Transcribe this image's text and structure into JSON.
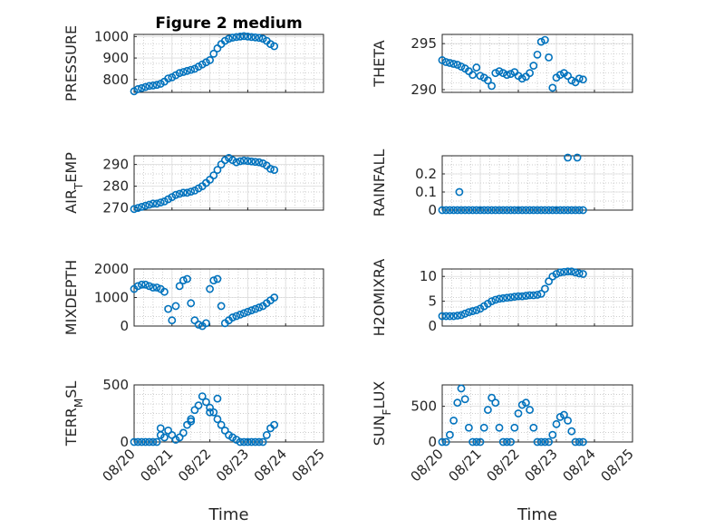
{
  "title": "Figure 2 medium",
  "chart_data": [
    {
      "type": "scatter",
      "title": "Figure 2 medium",
      "ylabel": "PRESSURE",
      "yticks": [
        800,
        900,
        1000
      ],
      "ylim": [
        740,
        1010
      ],
      "xlim": [
        0,
        5
      ],
      "xticks": [
        "08/20",
        "08/21",
        "08/22",
        "08/23",
        "08/24",
        "08/25"
      ],
      "grid": "minor-dotted",
      "x": [
        0.0,
        0.1,
        0.2,
        0.3,
        0.4,
        0.5,
        0.6,
        0.7,
        0.8,
        0.9,
        1.0,
        1.1,
        1.2,
        1.3,
        1.4,
        1.5,
        1.6,
        1.7,
        1.8,
        1.9,
        2.0,
        2.1,
        2.2,
        2.3,
        2.4,
        2.5,
        2.6,
        2.7,
        2.8,
        2.9,
        3.0,
        3.1,
        3.2,
        3.3,
        3.4,
        3.5,
        3.6,
        3.7
      ],
      "y": [
        745,
        755,
        760,
        765,
        770,
        772,
        775,
        780,
        790,
        805,
        810,
        820,
        830,
        835,
        840,
        845,
        850,
        860,
        870,
        880,
        890,
        920,
        945,
        965,
        980,
        990,
        995,
        998,
        1000,
        1002,
        1000,
        998,
        996,
        994,
        990,
        980,
        965,
        955
      ]
    },
    {
      "type": "scatter",
      "ylabel": "THETA",
      "yticks": [
        290,
        295
      ],
      "ylim": [
        289.7,
        296
      ],
      "xlim": [
        0,
        5
      ],
      "xticks": [
        "08/20",
        "08/21",
        "08/22",
        "08/23",
        "08/24",
        "08/25"
      ],
      "grid": "minor-dotted",
      "x": [
        0.0,
        0.1,
        0.2,
        0.3,
        0.4,
        0.5,
        0.6,
        0.7,
        0.8,
        0.9,
        1.0,
        1.1,
        1.2,
        1.3,
        1.4,
        1.5,
        1.6,
        1.7,
        1.8,
        1.9,
        2.0,
        2.1,
        2.2,
        2.3,
        2.4,
        2.5,
        2.6,
        2.7,
        2.8,
        2.9,
        3.0,
        3.1,
        3.2,
        3.3,
        3.4,
        3.5,
        3.6,
        3.7
      ],
      "y": [
        293.2,
        293.0,
        292.9,
        292.8,
        292.7,
        292.5,
        292.3,
        292.0,
        291.6,
        292.4,
        291.5,
        291.3,
        291.0,
        290.4,
        291.8,
        292.0,
        291.8,
        291.6,
        291.7,
        291.9,
        291.5,
        291.2,
        291.4,
        291.8,
        292.6,
        293.8,
        295.2,
        295.4,
        293.5,
        290.2,
        291.3,
        291.6,
        291.8,
        291.5,
        291.0,
        290.8,
        291.2,
        291.1
      ]
    },
    {
      "type": "scatter",
      "ylabel": "AIR",
      "ylabel_sub": "T",
      "ylabel_rest": "EMP",
      "yticks": [
        270,
        280,
        290
      ],
      "ylim": [
        269,
        294
      ],
      "xlim": [
        0,
        5
      ],
      "xticks": [
        "08/20",
        "08/21",
        "08/22",
        "08/23",
        "08/24",
        "08/25"
      ],
      "grid": "minor-dotted",
      "x": [
        0.0,
        0.1,
        0.2,
        0.3,
        0.4,
        0.5,
        0.6,
        0.7,
        0.8,
        0.9,
        1.0,
        1.1,
        1.2,
        1.3,
        1.4,
        1.5,
        1.6,
        1.7,
        1.8,
        1.9,
        2.0,
        2.1,
        2.2,
        2.3,
        2.4,
        2.5,
        2.6,
        2.7,
        2.8,
        2.9,
        3.0,
        3.1,
        3.2,
        3.3,
        3.4,
        3.5,
        3.6,
        3.7
      ],
      "y": [
        269.5,
        270.0,
        270.5,
        271.0,
        271.5,
        272.0,
        272.0,
        272.5,
        273.0,
        274.0,
        275.0,
        276.0,
        276.5,
        277.0,
        277.0,
        277.5,
        278.0,
        279.0,
        280.0,
        281.5,
        283.0,
        285.0,
        287.5,
        290.0,
        292.0,
        293.0,
        292.0,
        291.0,
        291.5,
        291.8,
        291.6,
        291.4,
        291.2,
        291.0,
        290.5,
        289.5,
        288.0,
        287.5
      ]
    },
    {
      "type": "scatter",
      "ylabel": "RAINFALL",
      "yticks": [
        0,
        0.1,
        0.2
      ],
      "ylim": [
        0,
        0.3
      ],
      "xlim": [
        0,
        5
      ],
      "xticks": [
        "08/20",
        "08/21",
        "08/22",
        "08/23",
        "08/24",
        "08/25"
      ],
      "grid": "minor-dotted",
      "x": [
        0.0,
        0.1,
        0.2,
        0.3,
        0.4,
        0.5,
        0.6,
        0.7,
        0.8,
        0.9,
        1.0,
        1.1,
        1.2,
        1.3,
        1.4,
        1.5,
        1.6,
        1.7,
        1.8,
        1.9,
        2.0,
        2.1,
        2.2,
        2.3,
        2.4,
        2.5,
        2.6,
        2.7,
        2.8,
        2.9,
        3.0,
        3.1,
        3.2,
        3.3,
        3.4,
        3.5,
        3.6,
        3.7,
        0.45,
        3.3,
        3.55
      ],
      "y": [
        0,
        0,
        0,
        0,
        0,
        0,
        0,
        0,
        0,
        0,
        0,
        0,
        0,
        0,
        0,
        0,
        0,
        0,
        0,
        0,
        0,
        0,
        0,
        0,
        0,
        0,
        0,
        0,
        0,
        0,
        0,
        0,
        0,
        0,
        0,
        0,
        0,
        0,
        0.1,
        0.29,
        0.29
      ]
    },
    {
      "type": "scatter",
      "ylabel": "MIXDEPTH",
      "yticks": [
        0,
        1000,
        2000
      ],
      "ylim": [
        0,
        2000
      ],
      "xlim": [
        0,
        5
      ],
      "xticks": [
        "08/20",
        "08/21",
        "08/22",
        "08/23",
        "08/24",
        "08/25"
      ],
      "grid": "minor-dotted",
      "x": [
        0.0,
        0.1,
        0.2,
        0.3,
        0.4,
        0.5,
        0.6,
        0.7,
        0.8,
        0.9,
        1.0,
        1.1,
        1.2,
        1.3,
        1.4,
        1.5,
        1.6,
        1.7,
        1.8,
        1.9,
        2.0,
        2.1,
        2.2,
        2.3,
        2.4,
        2.5,
        2.6,
        2.7,
        2.8,
        2.9,
        3.0,
        3.1,
        3.2,
        3.3,
        3.4,
        3.5,
        3.6,
        3.7
      ],
      "y": [
        1300,
        1400,
        1450,
        1450,
        1400,
        1350,
        1350,
        1300,
        1200,
        600,
        200,
        700,
        1400,
        1600,
        1650,
        800,
        200,
        50,
        0,
        100,
        1300,
        1600,
        1650,
        700,
        100,
        200,
        300,
        350,
        400,
        450,
        500,
        550,
        600,
        650,
        700,
        800,
        900,
        1000
      ]
    },
    {
      "type": "scatter",
      "ylabel": "H2OMIXRA",
      "yticks": [
        0,
        5,
        10
      ],
      "ylim": [
        0,
        11.5
      ],
      "xlim": [
        0,
        5
      ],
      "xticks": [
        "08/20",
        "08/21",
        "08/22",
        "08/23",
        "08/24",
        "08/25"
      ],
      "grid": "minor-dotted",
      "x": [
        0.0,
        0.1,
        0.2,
        0.3,
        0.4,
        0.5,
        0.6,
        0.7,
        0.8,
        0.9,
        1.0,
        1.1,
        1.2,
        1.3,
        1.4,
        1.5,
        1.6,
        1.7,
        1.8,
        1.9,
        2.0,
        2.1,
        2.2,
        2.3,
        2.4,
        2.5,
        2.6,
        2.7,
        2.8,
        2.9,
        3.0,
        3.1,
        3.2,
        3.3,
        3.4,
        3.5,
        3.6,
        3.7
      ],
      "y": [
        2.0,
        2.0,
        2.0,
        2.0,
        2.1,
        2.2,
        2.5,
        2.8,
        3.0,
        3.2,
        3.5,
        4.0,
        4.5,
        5.0,
        5.3,
        5.5,
        5.6,
        5.7,
        5.8,
        5.9,
        6.0,
        6.0,
        6.1,
        6.2,
        6.2,
        6.3,
        6.5,
        7.5,
        9.0,
        10.0,
        10.5,
        10.8,
        10.9,
        11.0,
        11.0,
        10.8,
        10.6,
        10.5
      ]
    },
    {
      "type": "scatter",
      "ylabel": "TERR",
      "ylabel_sub": "M",
      "ylabel_rest": "SL",
      "yticks": [
        0,
        500
      ],
      "ylim": [
        0,
        500
      ],
      "xlim": [
        0,
        5
      ],
      "xticks": [
        "08/20",
        "08/21",
        "08/22",
        "08/23",
        "08/24",
        "08/25"
      ],
      "xlabel": "Time",
      "grid": "minor-dotted",
      "x": [
        0.0,
        0.1,
        0.2,
        0.3,
        0.4,
        0.5,
        0.6,
        0.7,
        0.8,
        0.9,
        1.0,
        1.1,
        1.2,
        1.3,
        1.4,
        1.5,
        1.6,
        1.7,
        1.8,
        1.9,
        2.0,
        2.1,
        2.2,
        2.3,
        2.4,
        2.5,
        2.6,
        2.7,
        2.8,
        2.9,
        3.0,
        3.1,
        3.2,
        3.3,
        3.4,
        3.5,
        3.6,
        3.7,
        0.7,
        1.5,
        2.0,
        2.2
      ],
      "y": [
        0,
        0,
        0,
        0,
        0,
        0,
        0,
        120,
        40,
        100,
        60,
        20,
        40,
        80,
        150,
        200,
        280,
        320,
        400,
        350,
        300,
        260,
        200,
        150,
        100,
        60,
        40,
        20,
        0,
        0,
        0,
        0,
        0,
        0,
        0,
        60,
        120,
        150,
        60,
        180,
        260,
        380
      ]
    },
    {
      "type": "scatter",
      "ylabel": "SUN",
      "ylabel_sub": "F",
      "ylabel_rest": "LUX",
      "yticks": [
        0,
        500
      ],
      "ylim": [
        0,
        800
      ],
      "xlim": [
        0,
        5
      ],
      "xticks": [
        "08/20",
        "08/21",
        "08/22",
        "08/23",
        "08/24",
        "08/25"
      ],
      "xlabel": "Time",
      "grid": "minor-dotted",
      "x": [
        0.0,
        0.1,
        0.2,
        0.3,
        0.4,
        0.5,
        0.6,
        0.7,
        0.8,
        0.9,
        1.0,
        1.1,
        1.2,
        1.3,
        1.4,
        1.5,
        1.6,
        1.7,
        1.8,
        1.9,
        2.0,
        2.1,
        2.2,
        2.3,
        2.4,
        2.5,
        2.6,
        2.7,
        2.8,
        2.9,
        3.0,
        3.1,
        3.2,
        3.3,
        3.4,
        3.5,
        3.6,
        3.7
      ],
      "y": [
        0,
        0,
        100,
        300,
        550,
        750,
        600,
        200,
        0,
        0,
        0,
        200,
        450,
        620,
        550,
        200,
        0,
        0,
        0,
        200,
        400,
        520,
        550,
        450,
        200,
        0,
        0,
        0,
        0,
        100,
        250,
        350,
        380,
        300,
        150,
        0,
        0,
        0
      ]
    }
  ]
}
